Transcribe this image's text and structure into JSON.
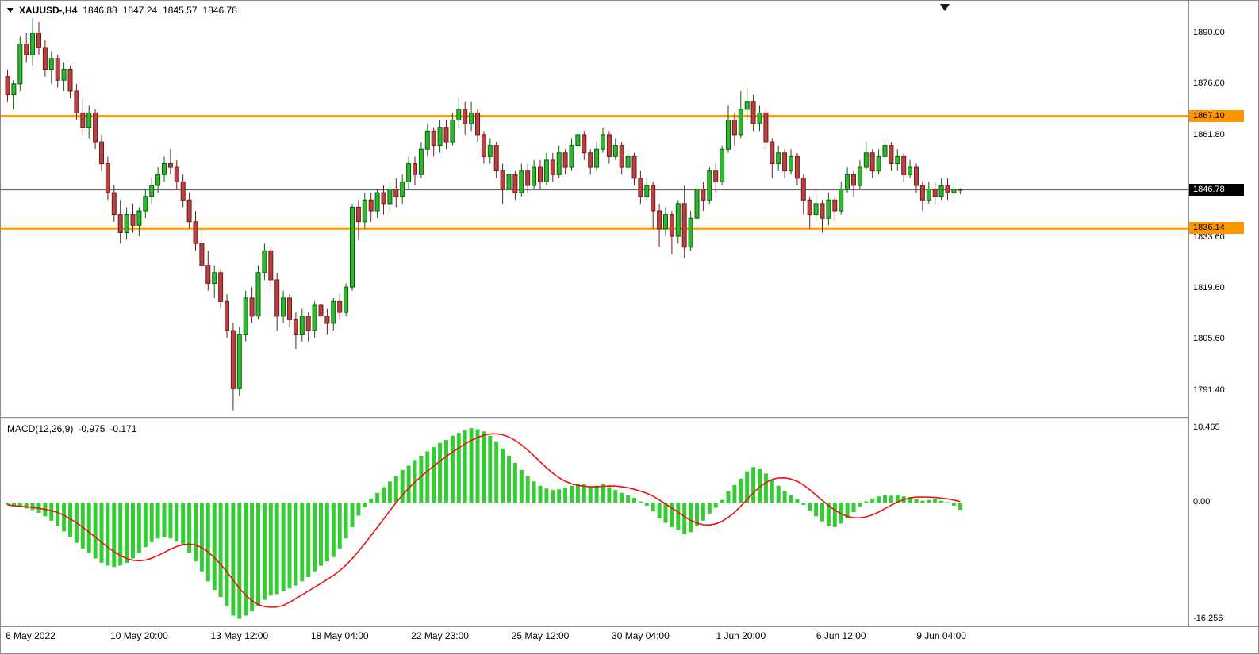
{
  "header": {
    "symbol": "XAUUSD-,H4",
    "open": "1846.88",
    "high": "1847.24",
    "low": "1845.57",
    "close": "1846.78"
  },
  "indicator": {
    "name": "MACD(12,26,9)",
    "main_value": "-0.975",
    "signal_value": "-0.171"
  },
  "chart_data": [
    {
      "type": "candlestick",
      "title": "XAUUSD- H4 price",
      "ylim": [
        1784.2,
        1898.9
      ],
      "colors": {
        "up": {
          "fill": "#2eb82e",
          "stroke": "#0b5e0b"
        },
        "down": {
          "fill": "#bb4040",
          "stroke": "#6e1d1d"
        }
      },
      "y_ticks": [
        {
          "value": 1890.0,
          "label": "1890.00"
        },
        {
          "value": 1876.0,
          "label": "1876.00"
        },
        {
          "value": 1861.8,
          "label": "1861.80"
        },
        {
          "value": 1833.6,
          "label": "1833.60"
        },
        {
          "value": 1819.6,
          "label": "1819.60"
        },
        {
          "value": 1805.6,
          "label": "1805.60"
        },
        {
          "value": 1791.4,
          "label": "1791.40"
        }
      ],
      "hlines": [
        {
          "value": 1867.1,
          "label": "1867.10",
          "color": "#ff9600"
        },
        {
          "value": 1836.14,
          "label": "1836.14",
          "color": "#ff9600"
        }
      ],
      "current_price": {
        "value": 1846.78,
        "label": "1846.78",
        "badge_bg": "#000000",
        "badge_fg": "#ffffff"
      },
      "x_ticks": [
        {
          "i": 4,
          "label": "6 May 2022"
        },
        {
          "i": 21,
          "label": "10 May 20:00"
        },
        {
          "i": 37,
          "label": "13 May 12:00"
        },
        {
          "i": 53,
          "label": "18 May 04:00"
        },
        {
          "i": 69,
          "label": "22 May 23:00"
        },
        {
          "i": 85,
          "label": "25 May 12:00"
        },
        {
          "i": 101,
          "label": "30 May 04:00"
        },
        {
          "i": 117,
          "label": "1 Jun 20:00"
        },
        {
          "i": 133,
          "label": "6 Jun 12:00"
        },
        {
          "i": 149,
          "label": "9 Jun 04:00"
        }
      ],
      "candles": [
        [
          1878,
          1880,
          1871,
          1873
        ],
        [
          1873,
          1877,
          1869,
          1876
        ],
        [
          1876,
          1889,
          1874,
          1887
        ],
        [
          1887,
          1890,
          1882,
          1884
        ],
        [
          1884,
          1894,
          1881,
          1890
        ],
        [
          1890,
          1893,
          1884,
          1886
        ],
        [
          1886,
          1888,
          1878,
          1880
        ],
        [
          1880,
          1885,
          1876,
          1883
        ],
        [
          1883,
          1884,
          1875,
          1877
        ],
        [
          1877,
          1882,
          1874,
          1880
        ],
        [
          1880,
          1881,
          1872,
          1874
        ],
        [
          1874,
          1876,
          1866,
          1868
        ],
        [
          1868,
          1872,
          1862,
          1864
        ],
        [
          1864,
          1870,
          1861,
          1868
        ],
        [
          1868,
          1869,
          1858,
          1860
        ],
        [
          1860,
          1862,
          1852,
          1854
        ],
        [
          1854,
          1856,
          1844,
          1846
        ],
        [
          1846,
          1848,
          1838,
          1840
        ],
        [
          1840,
          1844,
          1832,
          1835
        ],
        [
          1835,
          1842,
          1833,
          1840
        ],
        [
          1840,
          1843,
          1835,
          1837
        ],
        [
          1837,
          1842,
          1834,
          1841
        ],
        [
          1841,
          1847,
          1839,
          1845
        ],
        [
          1845,
          1850,
          1843,
          1848
        ],
        [
          1848,
          1853,
          1846,
          1851
        ],
        [
          1851,
          1856,
          1849,
          1854
        ],
        [
          1854,
          1858,
          1851,
          1853
        ],
        [
          1853,
          1855,
          1847,
          1849
        ],
        [
          1849,
          1851,
          1842,
          1844
        ],
        [
          1844,
          1846,
          1836,
          1838
        ],
        [
          1838,
          1841,
          1830,
          1832
        ],
        [
          1832,
          1836,
          1824,
          1826
        ],
        [
          1826,
          1830,
          1819,
          1821
        ],
        [
          1821,
          1826,
          1817,
          1824
        ],
        [
          1824,
          1825,
          1814,
          1816
        ],
        [
          1816,
          1818,
          1806,
          1808
        ],
        [
          1808,
          1810,
          1786,
          1792
        ],
        [
          1792,
          1809,
          1790,
          1807
        ],
        [
          1807,
          1819,
          1805,
          1817
        ],
        [
          1817,
          1820,
          1810,
          1812
        ],
        [
          1812,
          1826,
          1811,
          1824
        ],
        [
          1824,
          1832,
          1822,
          1830
        ],
        [
          1830,
          1831,
          1820,
          1822
        ],
        [
          1822,
          1824,
          1808,
          1812
        ],
        [
          1812,
          1819,
          1810,
          1817
        ],
        [
          1817,
          1818,
          1809,
          1811
        ],
        [
          1811,
          1813,
          1803,
          1807
        ],
        [
          1807,
          1814,
          1805,
          1812
        ],
        [
          1812,
          1813,
          1805,
          1808
        ],
        [
          1808,
          1816,
          1806,
          1815
        ],
        [
          1815,
          1817,
          1809,
          1812
        ],
        [
          1812,
          1814,
          1807,
          1810
        ],
        [
          1810,
          1817,
          1808,
          1816
        ],
        [
          1816,
          1818,
          1811,
          1813
        ],
        [
          1813,
          1821,
          1812,
          1820
        ],
        [
          1820,
          1843,
          1819,
          1842
        ],
        [
          1842,
          1844,
          1833,
          1838
        ],
        [
          1838,
          1846,
          1836,
          1844
        ],
        [
          1844,
          1846,
          1838,
          1841
        ],
        [
          1841,
          1847,
          1839,
          1846
        ],
        [
          1846,
          1848,
          1840,
          1843
        ],
        [
          1843,
          1849,
          1841,
          1847
        ],
        [
          1847,
          1850,
          1842,
          1845
        ],
        [
          1845,
          1851,
          1843,
          1849
        ],
        [
          1849,
          1856,
          1847,
          1854
        ],
        [
          1854,
          1856,
          1848,
          1851
        ],
        [
          1851,
          1860,
          1850,
          1858
        ],
        [
          1858,
          1865,
          1856,
          1863
        ],
        [
          1863,
          1864,
          1856,
          1859
        ],
        [
          1859,
          1866,
          1857,
          1864
        ],
        [
          1864,
          1866,
          1858,
          1860
        ],
        [
          1860,
          1868,
          1859,
          1866
        ],
        [
          1866,
          1872,
          1864,
          1869
        ],
        [
          1869,
          1871,
          1862,
          1865
        ],
        [
          1865,
          1871,
          1863,
          1868
        ],
        [
          1868,
          1869,
          1860,
          1862
        ],
        [
          1862,
          1863,
          1854,
          1856
        ],
        [
          1856,
          1861,
          1854,
          1859
        ],
        [
          1859,
          1860,
          1850,
          1852
        ],
        [
          1852,
          1854,
          1843,
          1847
        ],
        [
          1847,
          1853,
          1845,
          1851
        ],
        [
          1851,
          1852,
          1844,
          1846
        ],
        [
          1846,
          1854,
          1845,
          1852
        ],
        [
          1852,
          1854,
          1846,
          1848
        ],
        [
          1848,
          1855,
          1847,
          1853
        ],
        [
          1853,
          1855,
          1847,
          1849
        ],
        [
          1849,
          1857,
          1848,
          1855
        ],
        [
          1855,
          1857,
          1849,
          1851
        ],
        [
          1851,
          1859,
          1850,
          1857
        ],
        [
          1857,
          1858,
          1851,
          1853
        ],
        [
          1853,
          1861,
          1852,
          1859
        ],
        [
          1859,
          1864,
          1858,
          1862
        ],
        [
          1862,
          1863,
          1855,
          1857
        ],
        [
          1857,
          1858,
          1851,
          1853
        ],
        [
          1853,
          1860,
          1852,
          1858
        ],
        [
          1858,
          1864,
          1857,
          1862
        ],
        [
          1862,
          1863,
          1854,
          1856
        ],
        [
          1856,
          1861,
          1855,
          1859
        ],
        [
          1859,
          1860,
          1851,
          1853
        ],
        [
          1853,
          1858,
          1852,
          1856
        ],
        [
          1856,
          1857,
          1848,
          1850
        ],
        [
          1850,
          1852,
          1843,
          1845
        ],
        [
          1845,
          1850,
          1844,
          1848
        ],
        [
          1848,
          1849,
          1836,
          1841
        ],
        [
          1841,
          1843,
          1831,
          1836
        ],
        [
          1836,
          1842,
          1834,
          1840
        ],
        [
          1840,
          1841,
          1829,
          1834
        ],
        [
          1834,
          1844,
          1832,
          1843
        ],
        [
          1843,
          1848,
          1828,
          1831
        ],
        [
          1831,
          1841,
          1830,
          1839
        ],
        [
          1839,
          1848,
          1838,
          1847
        ],
        [
          1847,
          1849,
          1841,
          1844
        ],
        [
          1844,
          1853,
          1843,
          1852
        ],
        [
          1852,
          1854,
          1846,
          1849
        ],
        [
          1849,
          1859,
          1848,
          1858
        ],
        [
          1858,
          1870,
          1857,
          1866
        ],
        [
          1866,
          1868,
          1859,
          1862
        ],
        [
          1862,
          1874,
          1861,
          1869
        ],
        [
          1869,
          1875,
          1866,
          1871
        ],
        [
          1871,
          1873,
          1863,
          1865
        ],
        [
          1865,
          1870,
          1863,
          1868
        ],
        [
          1868,
          1869,
          1858,
          1860
        ],
        [
          1860,
          1861,
          1850,
          1854
        ],
        [
          1854,
          1859,
          1852,
          1857
        ],
        [
          1857,
          1858,
          1850,
          1852
        ],
        [
          1852,
          1858,
          1851,
          1856
        ],
        [
          1856,
          1857,
          1848,
          1850
        ],
        [
          1850,
          1851,
          1840,
          1844
        ],
        [
          1844,
          1845,
          1836,
          1840
        ],
        [
          1840,
          1846,
          1838,
          1843
        ],
        [
          1843,
          1844,
          1835,
          1839
        ],
        [
          1839,
          1846,
          1837,
          1844
        ],
        [
          1844,
          1845,
          1838,
          1841
        ],
        [
          1841,
          1849,
          1840,
          1847
        ],
        [
          1847,
          1853,
          1846,
          1851
        ],
        [
          1851,
          1852,
          1845,
          1848
        ],
        [
          1848,
          1855,
          1847,
          1853
        ],
        [
          1853,
          1860,
          1852,
          1857
        ],
        [
          1857,
          1858,
          1850,
          1852
        ],
        [
          1852,
          1858,
          1851,
          1856
        ],
        [
          1856,
          1862,
          1855,
          1859
        ],
        [
          1859,
          1860,
          1852,
          1854
        ],
        [
          1854,
          1858,
          1852,
          1856
        ],
        [
          1856,
          1857,
          1849,
          1851
        ],
        [
          1851,
          1855,
          1850,
          1853
        ],
        [
          1853,
          1854,
          1846,
          1848
        ],
        [
          1848,
          1849,
          1841,
          1844
        ],
        [
          1844,
          1849,
          1843,
          1847
        ],
        [
          1847,
          1849,
          1843,
          1845
        ],
        [
          1845,
          1850,
          1844,
          1848
        ],
        [
          1848,
          1850,
          1844,
          1846
        ],
        [
          1846,
          1849,
          1843.5,
          1846.88
        ],
        [
          1846.88,
          1847.24,
          1845.57,
          1846.78
        ]
      ]
    },
    {
      "type": "bar",
      "title": "MACD(12,26,9)",
      "main_value": -0.975,
      "signal_value": -0.171,
      "signal_period": 9,
      "ylim": [
        -17.3,
        11.7
      ],
      "colors": {
        "histogram": "#33cc33",
        "signal": "#ee1111"
      },
      "y_ticks": [
        {
          "value": 10.465,
          "label": "10.465"
        },
        {
          "value": 0,
          "label": "0.00"
        },
        {
          "value": -16.256,
          "label": "-16.256"
        }
      ],
      "histogram": [
        -0.3,
        -0.5,
        -0.6,
        -0.8,
        -1.0,
        -1.4,
        -1.9,
        -2.5,
        -3.2,
        -4.0,
        -4.8,
        -5.6,
        -6.4,
        -7.0,
        -7.8,
        -8.4,
        -8.8,
        -9.0,
        -8.8,
        -8.4,
        -7.8,
        -7.0,
        -6.2,
        -5.5,
        -5.0,
        -4.8,
        -5.0,
        -5.4,
        -6.0,
        -7.0,
        -8.2,
        -9.6,
        -11.0,
        -12.2,
        -13.2,
        -14.4,
        -15.8,
        -16.256,
        -15.8,
        -15.2,
        -14.4,
        -13.6,
        -13.0,
        -12.8,
        -12.4,
        -12.0,
        -11.6,
        -11.0,
        -10.4,
        -9.6,
        -8.8,
        -8.2,
        -7.6,
        -6.4,
        -5.0,
        -3.4,
        -1.8,
        -0.6,
        0.6,
        1.4,
        2.2,
        3.0,
        3.8,
        4.6,
        5.2,
        6.0,
        6.6,
        7.2,
        7.8,
        8.4,
        8.8,
        9.4,
        9.8,
        10.2,
        10.465,
        10.3,
        10.0,
        9.4,
        8.6,
        7.6,
        6.6,
        5.6,
        4.6,
        3.8,
        3.0,
        2.4,
        2.0,
        1.8,
        1.9,
        2.1,
        2.4,
        2.7,
        2.6,
        2.3,
        2.4,
        2.6,
        2.2,
        1.8,
        1.4,
        1.1,
        0.7,
        0.2,
        -0.4,
        -1.2,
        -2.2,
        -2.8,
        -3.4,
        -3.8,
        -4.4,
        -4.1,
        -3.3,
        -2.5,
        -1.5,
        -0.7,
        0.4,
        1.6,
        2.5,
        3.4,
        4.4,
        5.0,
        4.8,
        4.1,
        3.2,
        2.4,
        1.7,
        1.1,
        0.5,
        -0.3,
        -1.1,
        -1.9,
        -2.6,
        -3.2,
        -3.4,
        -2.9,
        -2.1,
        -1.3,
        -0.5,
        0.2,
        0.6,
        0.9,
        1.1,
        1.0,
        1.1,
        0.9,
        0.8,
        0.6,
        0.3,
        0.4,
        0.5,
        0.3,
        0.1,
        -0.4,
        -0.975
      ]
    }
  ]
}
